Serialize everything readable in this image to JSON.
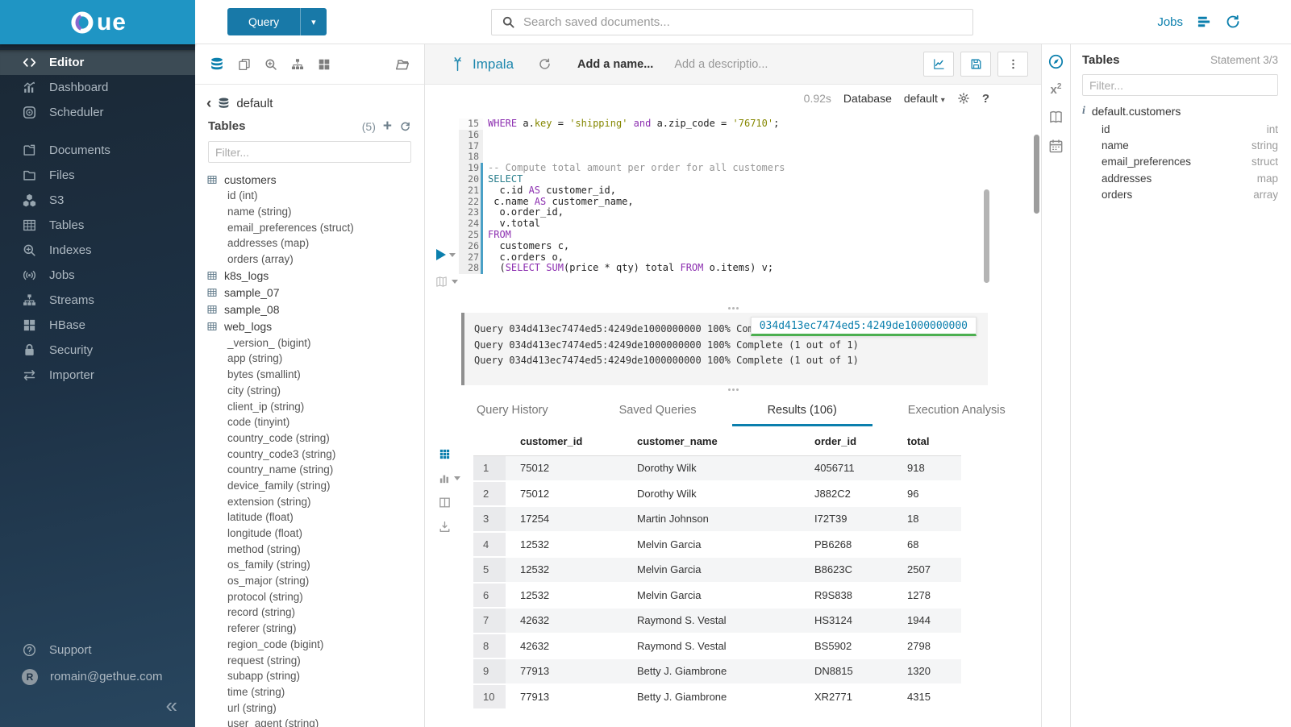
{
  "sidebar": {
    "logo_text": "ue",
    "items": [
      {
        "id": "editor",
        "label": "Editor",
        "icon": "code-icon",
        "active": true
      },
      {
        "id": "dashboard",
        "label": "Dashboard",
        "icon": "dashboard-icon"
      },
      {
        "id": "scheduler",
        "label": "Scheduler",
        "icon": "scheduler-icon"
      },
      {
        "id": "documents",
        "label": "Documents",
        "icon": "documents-icon",
        "gap_before": true
      },
      {
        "id": "files",
        "label": "Files",
        "icon": "folder-icon"
      },
      {
        "id": "s3",
        "label": "S3",
        "icon": "cubes-icon"
      },
      {
        "id": "tables",
        "label": "Tables",
        "icon": "table-icon"
      },
      {
        "id": "indexes",
        "label": "Indexes",
        "icon": "search-plus-icon"
      },
      {
        "id": "jobs",
        "label": "Jobs",
        "icon": "broadcast-icon"
      },
      {
        "id": "streams",
        "label": "Streams",
        "icon": "sitemap-icon"
      },
      {
        "id": "hbase",
        "label": "HBase",
        "icon": "th-large-icon"
      },
      {
        "id": "security",
        "label": "Security",
        "icon": "lock-icon"
      },
      {
        "id": "importer",
        "label": "Importer",
        "icon": "exchange-icon"
      }
    ],
    "footer": [
      {
        "id": "support",
        "label": "Support",
        "icon": "question-circle-icon"
      },
      {
        "id": "user",
        "label": "romain@gethue.com",
        "icon": "avatar",
        "avatar_letter": "R"
      }
    ],
    "collapse_icon": "«"
  },
  "topbar": {
    "query_button": "Query",
    "search_placeholder": "Search saved documents...",
    "jobs_label": "Jobs"
  },
  "left_assist": {
    "database": "default",
    "header": "Tables",
    "count": "(5)",
    "filter_placeholder": "Filter...",
    "tables": [
      {
        "name": "customers",
        "columns": [
          "id (int)",
          "name (string)",
          "email_preferences (struct)",
          "addresses (map)",
          "orders (array)"
        ]
      },
      {
        "name": "k8s_logs",
        "columns": []
      },
      {
        "name": "sample_07",
        "columns": []
      },
      {
        "name": "sample_08",
        "columns": []
      },
      {
        "name": "web_logs",
        "columns": [
          "_version_ (bigint)",
          "app (string)",
          "bytes (smallint)",
          "city (string)",
          "client_ip (string)",
          "code (tinyint)",
          "country_code (string)",
          "country_code3 (string)",
          "country_name (string)",
          "device_family (string)",
          "extension (string)",
          "latitude (float)",
          "longitude (float)",
          "method (string)",
          "os_family (string)",
          "os_major (string)",
          "protocol (string)",
          "record (string)",
          "referer (string)",
          "region_code (bigint)",
          "request (string)",
          "subapp (string)",
          "time (string)",
          "url (string)",
          "user_agent (string)"
        ]
      }
    ]
  },
  "editor": {
    "engine": "Impala",
    "name_placeholder": "Add a name...",
    "description_placeholder": "Add a descriptio...",
    "execution_time": "0.92s",
    "database_label": "Database",
    "database_value": "default",
    "code": [
      {
        "n": 15,
        "g": "plain",
        "t": [
          [
            "k",
            "WHERE"
          ],
          [
            "p",
            " a."
          ],
          [
            "s",
            "key"
          ],
          [
            "p",
            " = "
          ],
          [
            "s",
            "'shipping'"
          ],
          [
            "p",
            " "
          ],
          [
            "k",
            "and"
          ],
          [
            "p",
            " a.zip_code = "
          ],
          [
            "s",
            "'76710'"
          ],
          [
            "p",
            ";"
          ]
        ]
      },
      {
        "n": 16,
        "g": "shade",
        "t": []
      },
      {
        "n": 17,
        "g": "shade",
        "t": []
      },
      {
        "n": 18,
        "g": "shade",
        "t": []
      },
      {
        "n": 19,
        "g": "active",
        "t": [
          [
            "c",
            "-- Compute total amount per order for all customers"
          ]
        ]
      },
      {
        "n": 20,
        "g": "active",
        "t": [
          [
            "t",
            "SELECT"
          ]
        ]
      },
      {
        "n": 21,
        "g": "active",
        "t": [
          [
            "p",
            "  c.id "
          ],
          [
            "k",
            "AS"
          ],
          [
            "p",
            " customer_id,"
          ]
        ]
      },
      {
        "n": 22,
        "g": "active",
        "t": [
          [
            "p",
            " c.name "
          ],
          [
            "k",
            "AS"
          ],
          [
            "p",
            " customer_name,"
          ]
        ]
      },
      {
        "n": 23,
        "g": "active",
        "t": [
          [
            "p",
            "  o.order_id,"
          ]
        ]
      },
      {
        "n": 24,
        "g": "active",
        "t": [
          [
            "p",
            "  v.total"
          ]
        ]
      },
      {
        "n": 25,
        "g": "active",
        "t": [
          [
            "k",
            "FROM"
          ]
        ]
      },
      {
        "n": 26,
        "g": "active",
        "t": [
          [
            "p",
            "  customers c,"
          ]
        ]
      },
      {
        "n": 27,
        "g": "active",
        "t": [
          [
            "p",
            "  c.orders o,"
          ]
        ]
      },
      {
        "n": 28,
        "g": "active",
        "t": [
          [
            "p",
            "  ("
          ],
          [
            "k",
            "SELECT"
          ],
          [
            "p",
            " "
          ],
          [
            "k",
            "SUM"
          ],
          [
            "p",
            "(price * qty) total "
          ],
          [
            "k",
            "FROM"
          ],
          [
            "p",
            " o.items) v;"
          ]
        ]
      }
    ],
    "log_lines": [
      "Query 034d413ec7474ed5:4249de1000000000 100% Complete (1 out of 1)",
      "Query 034d413ec7474ed5:4249de1000000000 100% Complete (1 out of 1)",
      "Query 034d413ec7474ed5:4249de1000000000 100% Complete (1 out of 1)"
    ],
    "query_id_tooltip": "034d413ec7474ed5:4249de1000000000"
  },
  "tabs": [
    {
      "label": "Query History",
      "active": false
    },
    {
      "label": "Saved Queries",
      "active": false
    },
    {
      "label": "Results (106)",
      "active": true
    },
    {
      "label": "Execution Analysis",
      "active": false
    }
  ],
  "results": {
    "columns": [
      "customer_id",
      "customer_name",
      "order_id",
      "total"
    ],
    "rows": [
      [
        "1",
        "75012",
        "Dorothy Wilk",
        "4056711",
        "918"
      ],
      [
        "2",
        "75012",
        "Dorothy Wilk",
        "J882C2",
        "96"
      ],
      [
        "3",
        "17254",
        "Martin Johnson",
        "I72T39",
        "18"
      ],
      [
        "4",
        "12532",
        "Melvin Garcia",
        "PB6268",
        "68"
      ],
      [
        "5",
        "12532",
        "Melvin Garcia",
        "B8623C",
        "2507"
      ],
      [
        "6",
        "12532",
        "Melvin Garcia",
        "R9S838",
        "1278"
      ],
      [
        "7",
        "42632",
        "Raymond S. Vestal",
        "HS3124",
        "1944"
      ],
      [
        "8",
        "42632",
        "Raymond S. Vestal",
        "BS5902",
        "2798"
      ],
      [
        "9",
        "77913",
        "Betty J. Giambrone",
        "DN8815",
        "1320"
      ],
      [
        "10",
        "77913",
        "Betty J. Giambrone",
        "XR2771",
        "4315"
      ]
    ]
  },
  "right_assist": {
    "title": "Tables",
    "statement": "Statement 3/3",
    "filter_placeholder": "Filter...",
    "table_name": "default.customers",
    "columns": [
      {
        "name": "id",
        "type": "int"
      },
      {
        "name": "name",
        "type": "string"
      },
      {
        "name": "email_preferences",
        "type": "struct"
      },
      {
        "name": "addresses",
        "type": "map"
      },
      {
        "name": "orders",
        "type": "array"
      }
    ]
  },
  "colors": {
    "accent": "#0b7fad",
    "logo_bar": "#1f95c4",
    "sql_keyword": "#8c2fb0",
    "sql_string": "#858700",
    "sql_comment": "#969696",
    "tooltip_underline_green": "#4caf50"
  }
}
